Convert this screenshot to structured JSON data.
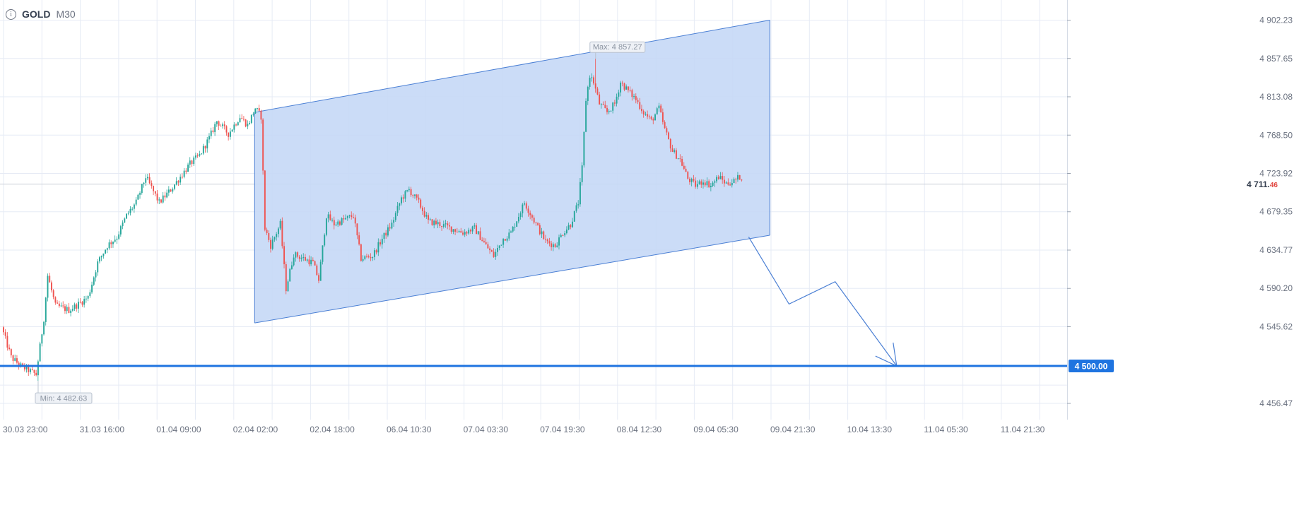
{
  "header": {
    "symbol": "GOLD",
    "timeframe": "M30",
    "info_icon": "info-icon"
  },
  "colors": {
    "up": "#26a69a",
    "down": "#ef5350",
    "grid": "#e6ebf5",
    "channel_fill": "#c5d8f6",
    "channel_line": "#4a7fd4",
    "level": "#1f74e0",
    "text": "#6b7280"
  },
  "chart_data": {
    "type": "candlestick",
    "symbol": "GOLD",
    "timeframe": "M30",
    "y_ticks": [
      "4 902.23",
      "4 857.65",
      "4 813.08",
      "4 768.50",
      "4 723.92",
      "4 679.35",
      "4 634.77",
      "4 590.20",
      "4 545.62",
      "4 456.47"
    ],
    "y_tick_values": [
      4902.23,
      4857.65,
      4813.08,
      4768.5,
      4723.92,
      4679.35,
      4634.77,
      4590.2,
      4545.62,
      4456.47
    ],
    "ylim": [
      4440,
      4920
    ],
    "x_ticks": [
      "30.03 23:00",
      "31.03 16:00",
      "01.04 09:00",
      "02.04 02:00",
      "02.04 18:00",
      "06.04 10:30",
      "07.04 03:30",
      "07.04 19:30",
      "08.04 12:30",
      "09.04 05:30",
      "09.04 21:30",
      "10.04 13:30",
      "11.04 05:30",
      "11.04 21:30"
    ],
    "current_price": {
      "integer": "4 711.",
      "decimals": "46",
      "value": 4711.46
    },
    "level_label": "4 500.00",
    "level_value": 4500.0,
    "max_label": "Max: 4 857.27",
    "max_value": 4857.27,
    "max_bar": 308,
    "min_label": "Min: 4 482.63",
    "min_value": 4482.63,
    "min_bar": 18,
    "price_path": [
      [
        0,
        4545
      ],
      [
        5,
        4510
      ],
      [
        10,
        4500
      ],
      [
        18,
        4490
      ],
      [
        22,
        4555
      ],
      [
        24,
        4605
      ],
      [
        28,
        4570
      ],
      [
        35,
        4565
      ],
      [
        40,
        4572
      ],
      [
        45,
        4580
      ],
      [
        50,
        4620
      ],
      [
        55,
        4640
      ],
      [
        60,
        4650
      ],
      [
        65,
        4675
      ],
      [
        70,
        4690
      ],
      [
        75,
        4720
      ],
      [
        82,
        4690
      ],
      [
        88,
        4705
      ],
      [
        93,
        4720
      ],
      [
        98,
        4735
      ],
      [
        103,
        4745
      ],
      [
        108,
        4765
      ],
      [
        112,
        4785
      ],
      [
        118,
        4770
      ],
      [
        124,
        4790
      ],
      [
        128,
        4780
      ],
      [
        132,
        4800
      ],
      [
        135,
        4790
      ],
      [
        137,
        4660
      ],
      [
        140,
        4640
      ],
      [
        145,
        4665
      ],
      [
        148,
        4590
      ],
      [
        152,
        4630
      ],
      [
        157,
        4625
      ],
      [
        162,
        4620
      ],
      [
        165,
        4600
      ],
      [
        169,
        4675
      ],
      [
        173,
        4665
      ],
      [
        178,
        4670
      ],
      [
        183,
        4675
      ],
      [
        187,
        4625
      ],
      [
        193,
        4628
      ],
      [
        198,
        4648
      ],
      [
        203,
        4665
      ],
      [
        208,
        4695
      ],
      [
        212,
        4705
      ],
      [
        217,
        4690
      ],
      [
        222,
        4668
      ],
      [
        228,
        4665
      ],
      [
        234,
        4660
      ],
      [
        240,
        4655
      ],
      [
        246,
        4660
      ],
      [
        252,
        4640
      ],
      [
        256,
        4628
      ],
      [
        261,
        4648
      ],
      [
        265,
        4655
      ],
      [
        272,
        4690
      ],
      [
        278,
        4665
      ],
      [
        283,
        4645
      ],
      [
        288,
        4640
      ],
      [
        292,
        4655
      ],
      [
        296,
        4665
      ],
      [
        300,
        4690
      ],
      [
        302,
        4730
      ],
      [
        304,
        4810
      ],
      [
        306,
        4838
      ],
      [
        308,
        4830
      ],
      [
        311,
        4805
      ],
      [
        315,
        4795
      ],
      [
        319,
        4805
      ],
      [
        322,
        4830
      ],
      [
        326,
        4820
      ],
      [
        330,
        4810
      ],
      [
        334,
        4795
      ],
      [
        338,
        4785
      ],
      [
        342,
        4800
      ],
      [
        345,
        4775
      ],
      [
        349,
        4750
      ],
      [
        353,
        4740
      ],
      [
        357,
        4718
      ],
      [
        361,
        4710
      ],
      [
        365,
        4715
      ],
      [
        369,
        4710
      ],
      [
        373,
        4720
      ],
      [
        377,
        4712
      ],
      [
        381,
        4715
      ],
      [
        384,
        4720
      ]
    ],
    "bar_count": 385,
    "channel": {
      "upper": [
        [
          131,
          4795.0
        ],
        [
          399,
          4902.2
        ]
      ],
      "lower": [
        [
          131,
          4550.0
        ],
        [
          399,
          4652.0
        ]
      ]
    },
    "projection": [
      [
        388,
        4650.0
      ],
      [
        409,
        4572.0
      ],
      [
        433,
        4598.0
      ],
      [
        465,
        4500.0
      ]
    ],
    "arrow_tip": [
      465,
      4500.0
    ],
    "x_extent_bars": 556
  }
}
